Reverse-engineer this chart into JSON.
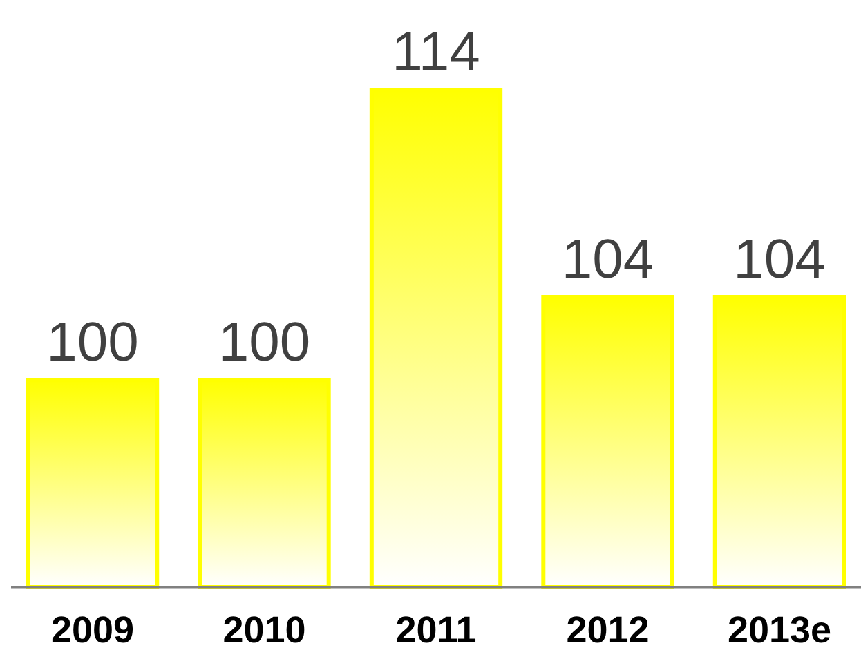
{
  "chart_data": {
    "type": "bar",
    "categories": [
      "2009",
      "2010",
      "2011",
      "2012",
      "2013e"
    ],
    "values": [
      100,
      100,
      114,
      104,
      104
    ],
    "color": "#ffff00",
    "ylim": [
      90,
      114
    ],
    "data_labels": true
  }
}
